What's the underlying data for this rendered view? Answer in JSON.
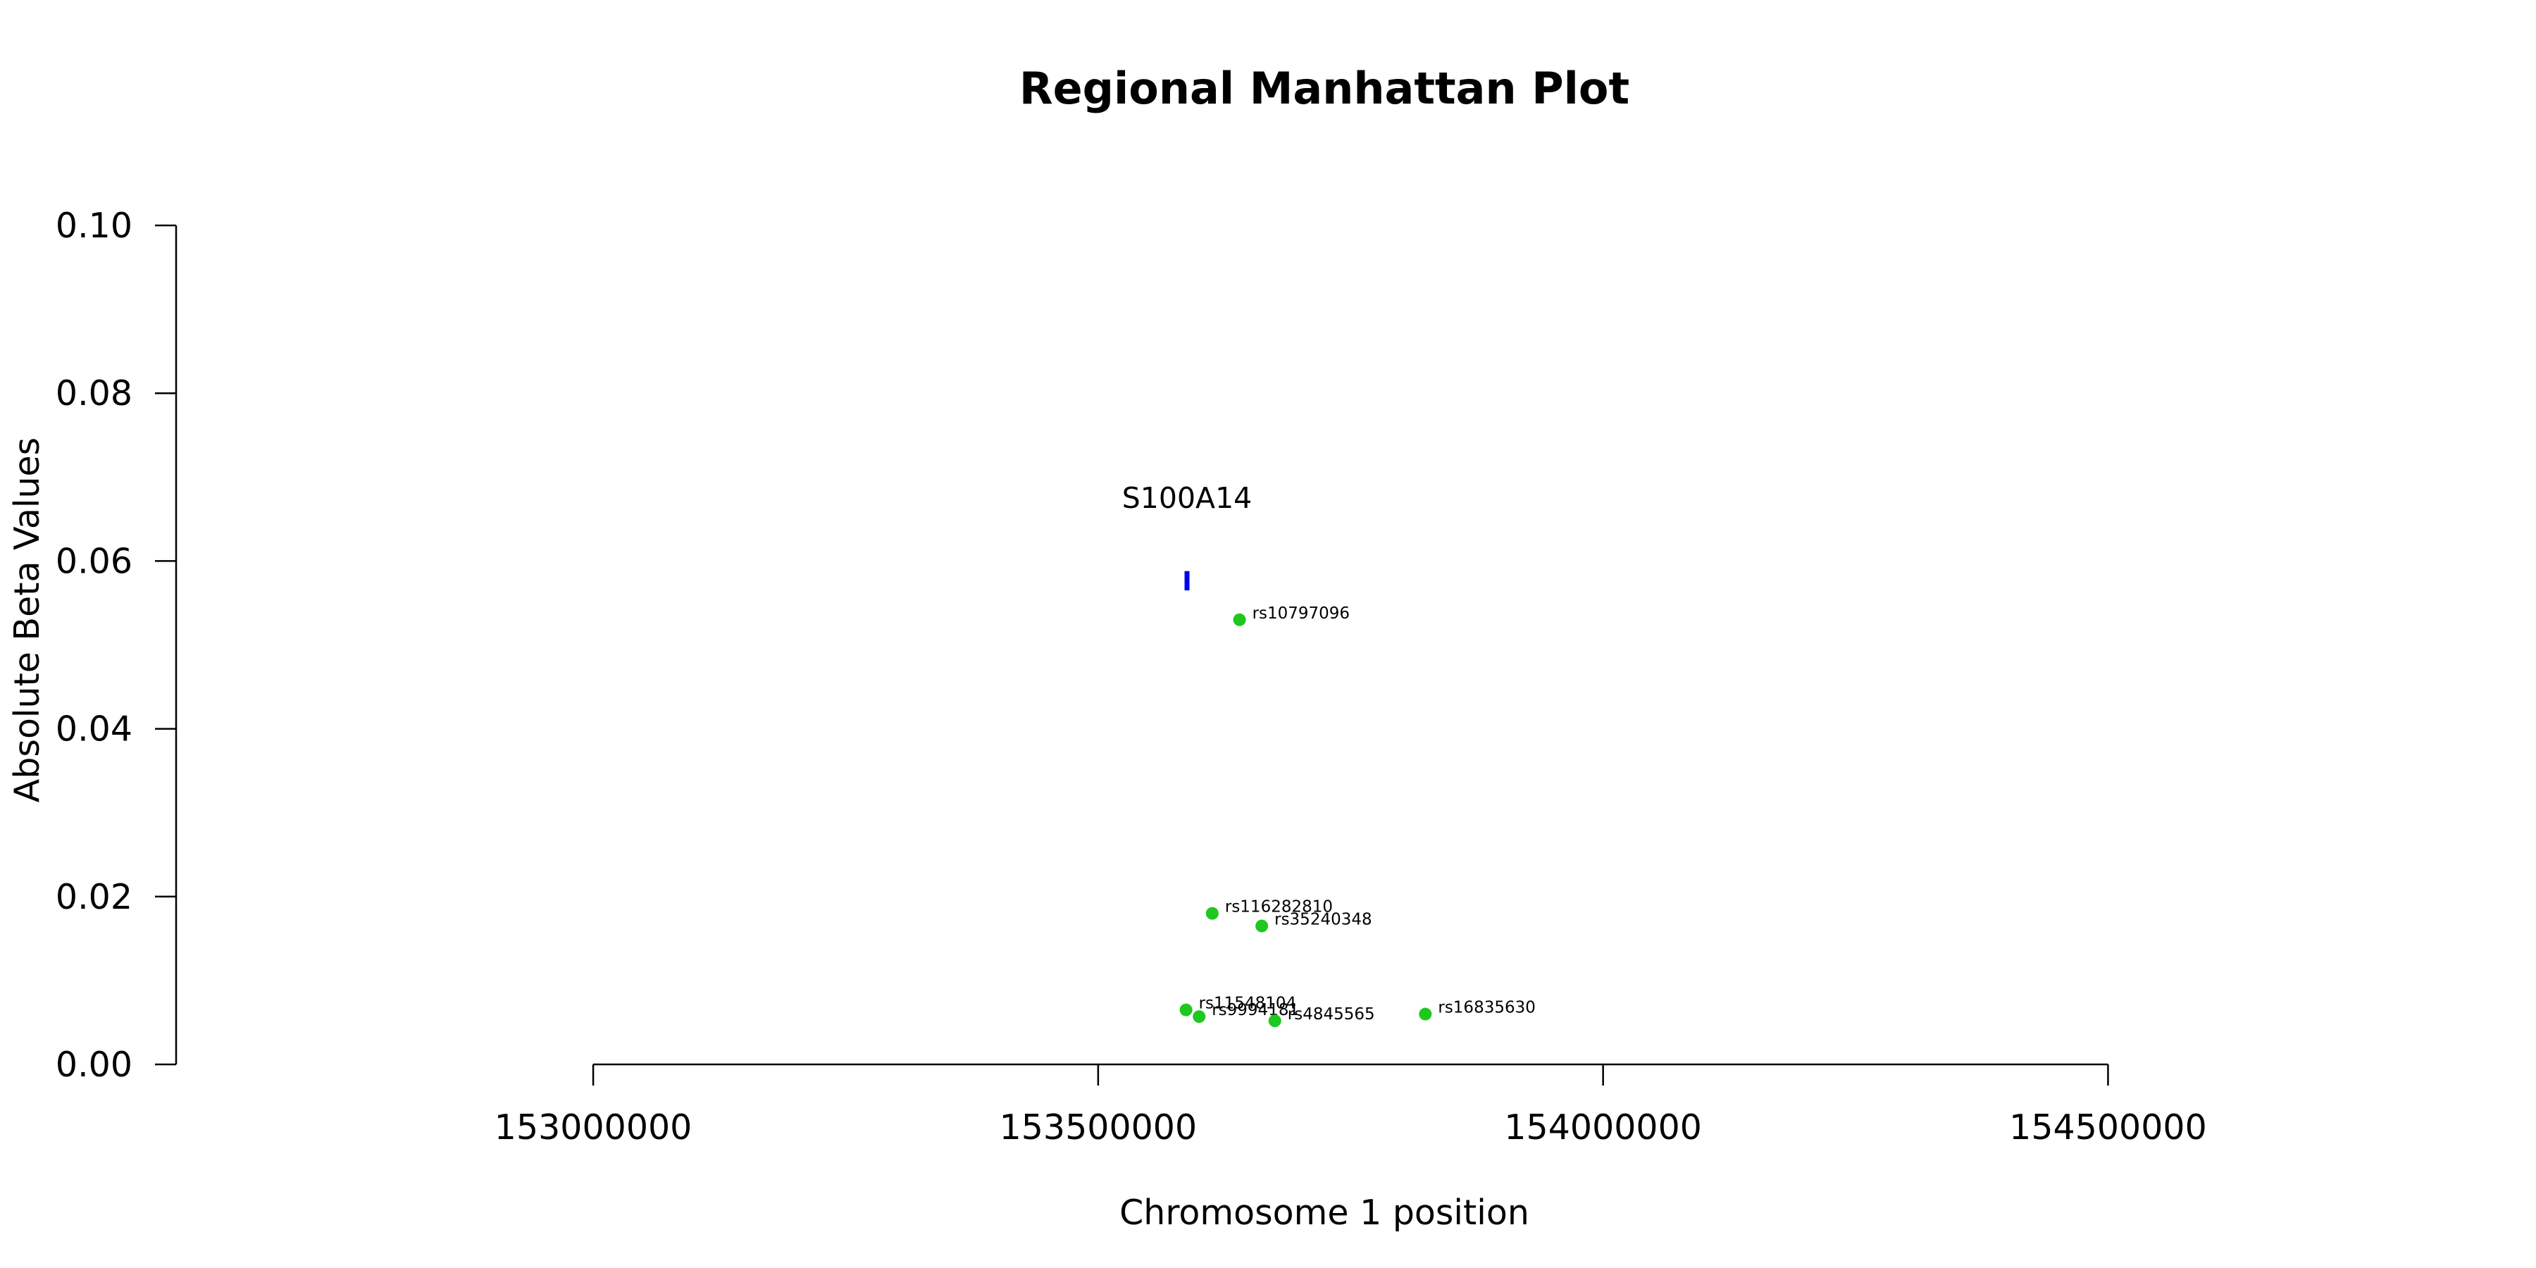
{
  "chart_data": {
    "type": "scatter",
    "title": "Regional Manhattan Plot",
    "xlabel": "Chromosome 1 position",
    "ylabel": "Absolute Beta Values",
    "xlim": [
      152587000,
      154861000
    ],
    "ylim": [
      0,
      0.1
    ],
    "x_ticks": [
      153000000,
      153500000,
      154000000,
      154500000
    ],
    "x_tick_labels": [
      "153000000",
      "153500000",
      "154000000",
      "154500000"
    ],
    "y_ticks": [
      0,
      0.02,
      0.04,
      0.06,
      0.08,
      0.1
    ],
    "y_tick_labels": [
      "0.00",
      "0.02",
      "0.04",
      "0.06",
      "0.08",
      "0.10"
    ],
    "grid": false,
    "legend": "none",
    "point_color": "#1ec81e",
    "gene_color": "#0000ee",
    "points": [
      {
        "label": "rs10797096",
        "x": 153640000,
        "y": 0.053
      },
      {
        "label": "rs116282810",
        "x": 153613000,
        "y": 0.018
      },
      {
        "label": "rs35240348",
        "x": 153662000,
        "y": 0.0165
      },
      {
        "label": "rs11548104",
        "x": 153587000,
        "y": 0.0065
      },
      {
        "label": "rs9994181",
        "x": 153600000,
        "y": 0.0057
      },
      {
        "label": "rs4845565",
        "x": 153675000,
        "y": 0.0052
      },
      {
        "label": "rs16835630",
        "x": 153824000,
        "y": 0.006
      }
    ],
    "genes": [
      {
        "name": "S100A14",
        "x": 153588000,
        "y_low": 0.0565,
        "y_high": 0.0588,
        "label_y": 0.0675
      }
    ]
  }
}
